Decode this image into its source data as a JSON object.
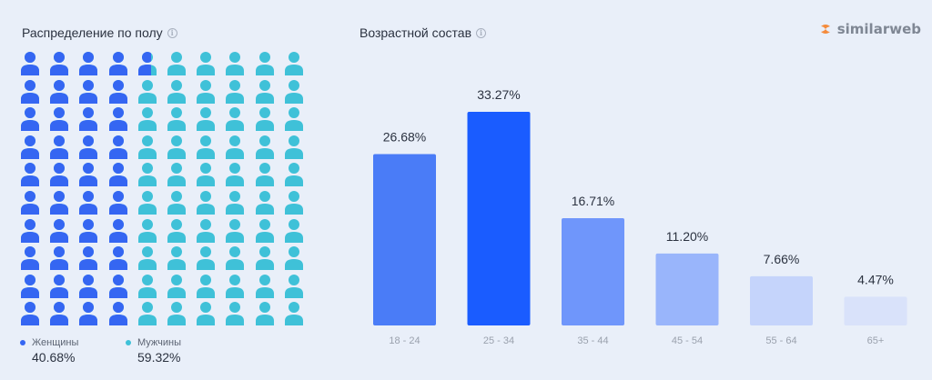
{
  "gender": {
    "title": "Распределение по полу",
    "women": {
      "label": "Женщины",
      "value": "40.68%",
      "color": "#3566f2"
    },
    "men": {
      "label": "Мужчины",
      "value": "59.32%",
      "color": "#3fc1d8"
    },
    "icon": "person-icon",
    "women_fraction": 0.4068
  },
  "age": {
    "title": "Возрастной состав"
  },
  "brand": {
    "name": "similarweb"
  },
  "chart_data": [
    {
      "type": "bar",
      "title": "Возрастной состав",
      "categories": [
        "18 - 24",
        "25 - 34",
        "35 - 44",
        "45 - 54",
        "55 - 64",
        "65+"
      ],
      "values": [
        26.68,
        33.27,
        16.71,
        11.2,
        7.66,
        4.47
      ],
      "labels": [
        "26.68%",
        "33.27%",
        "16.71%",
        "11.20%",
        "7.66%",
        "4.47%"
      ],
      "colors": [
        "#4a7cf7",
        "#1a5cff",
        "#6f96fb",
        "#99b5fb",
        "#c5d4fb",
        "#d9e2fa"
      ],
      "grid": false,
      "xlabel": "",
      "ylabel": ""
    },
    {
      "type": "pictogram",
      "title": "Распределение по полу",
      "series": [
        {
          "name": "Женщины",
          "value": 40.68
        },
        {
          "name": "Мужчины",
          "value": 59.32
        }
      ]
    }
  ]
}
